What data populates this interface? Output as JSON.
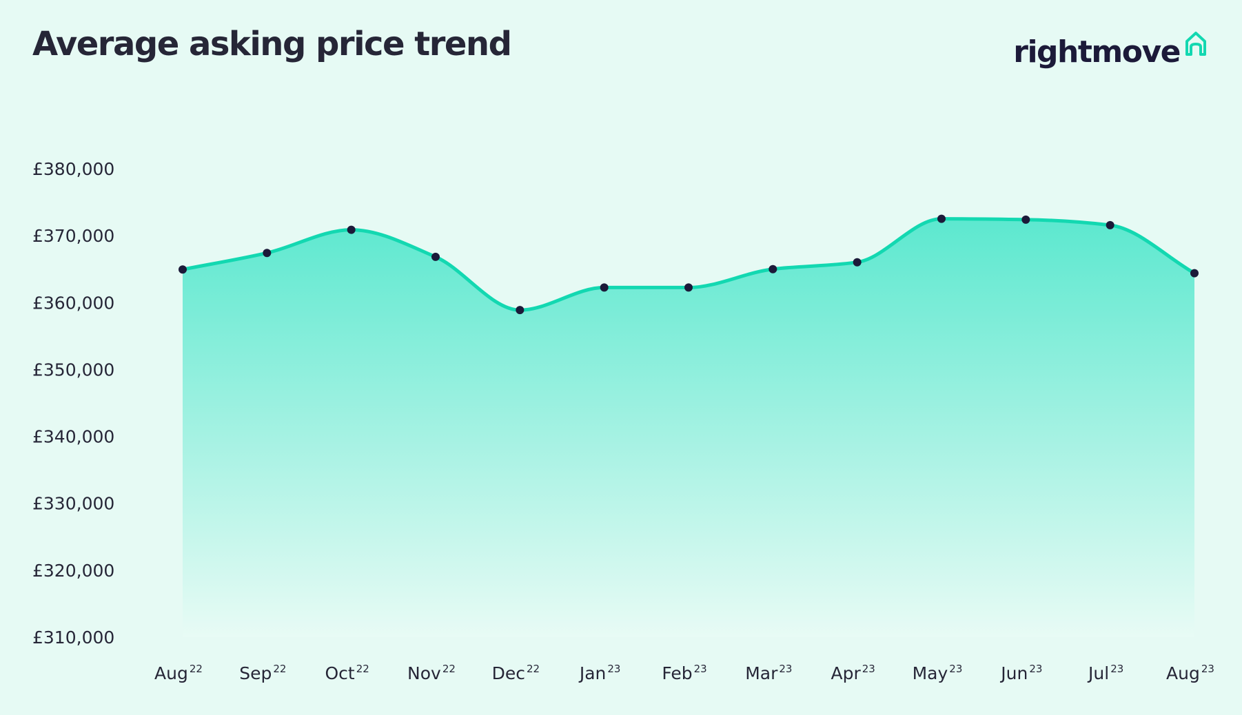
{
  "title": "Average asking price trend",
  "brand": {
    "name": "rightmove",
    "icon": "house-outline-icon",
    "icon_color": "#13d8b1"
  },
  "colors": {
    "background": "#e6faf4",
    "line": "#13d8b1",
    "area_top": "#5ce8cf",
    "area_bottom": "#e8fbf5",
    "point": "#1c1a39",
    "text": "#262637"
  },
  "chart_data": {
    "type": "area",
    "title": "Average asking price trend",
    "xlabel": "",
    "ylabel": "",
    "x": [
      {
        "month": "Aug",
        "year": "22"
      },
      {
        "month": "Sep",
        "year": "22"
      },
      {
        "month": "Oct",
        "year": "22"
      },
      {
        "month": "Nov",
        "year": "22"
      },
      {
        "month": "Dec",
        "year": "22"
      },
      {
        "month": "Jan",
        "year": "23"
      },
      {
        "month": "Feb",
        "year": "23"
      },
      {
        "month": "Mar",
        "year": "23"
      },
      {
        "month": "Apr",
        "year": "23"
      },
      {
        "month": "May",
        "year": "23"
      },
      {
        "month": "Jun",
        "year": "23"
      },
      {
        "month": "Jul",
        "year": "23"
      },
      {
        "month": "Aug",
        "year": "23"
      }
    ],
    "series": [
      {
        "values": [
          364950,
          367420,
          370880,
          366830,
          358880,
          362250,
          362250,
          365000,
          366030,
          372520,
          372400,
          371570,
          364390
        ]
      }
    ],
    "y_ticks": [
      380000,
      370000,
      360000,
      350000,
      340000,
      330000,
      320000,
      310000
    ],
    "y_tick_labels": [
      "£380,000",
      "£370,000",
      "£360,000",
      "£350,000",
      "£340,000",
      "£330,000",
      "£320,000",
      "£310,000"
    ],
    "ylim": [
      310000,
      380000
    ],
    "grid": false,
    "legend": "none",
    "line_smoothing": "smooth",
    "markers": true
  }
}
